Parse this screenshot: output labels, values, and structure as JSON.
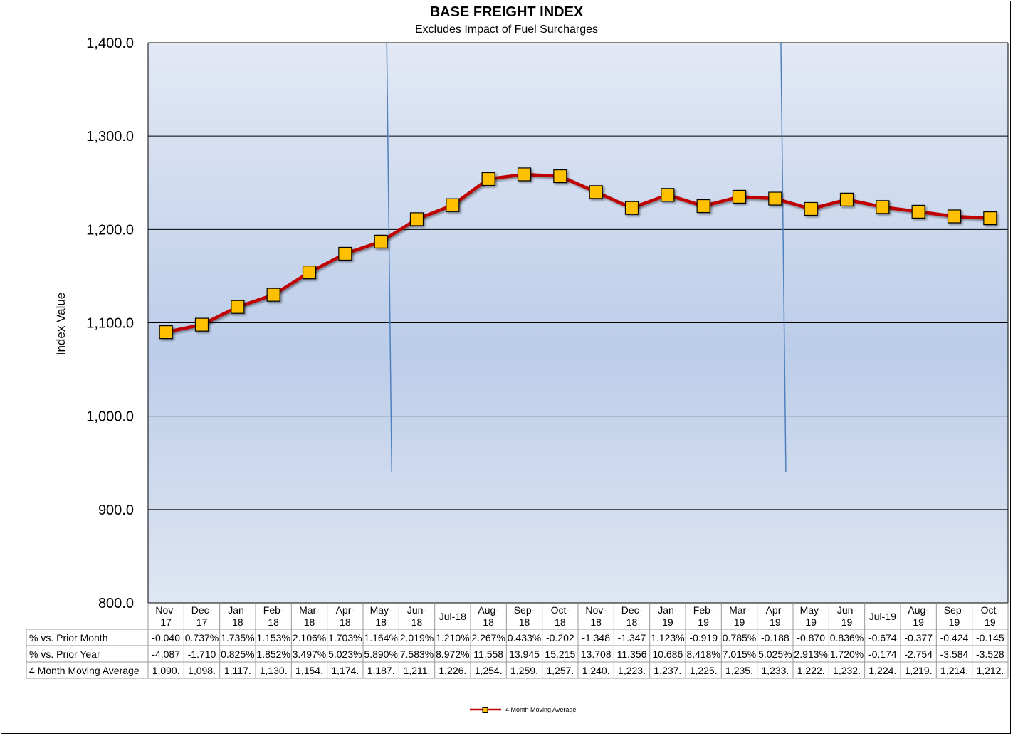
{
  "chart_data": {
    "type": "line",
    "title": "BASE FREIGHT INDEX",
    "subtitle": "Excludes Impact of Fuel Surcharges",
    "ylabel": "Index Value",
    "ylim": [
      800,
      1400
    ],
    "yticks": [
      "1,400.0",
      "1,300.0",
      "1,200.0",
      "1,100.0",
      "1,000.0",
      "900.0",
      "800.0"
    ],
    "ytick_values": [
      1400,
      1300,
      1200,
      1100,
      1000,
      900,
      800
    ],
    "grid": true,
    "legend_position": "bottom-center",
    "categories": [
      "Nov-\n17",
      "Dec-\n17",
      "Jan-\n18",
      "Feb-\n18",
      "Mar-\n18",
      "Apr-\n18",
      "May-\n18",
      "Jun-\n18",
      "Jul-18",
      "Aug-\n18",
      "Sep-\n18",
      "Oct-\n18",
      "Nov-\n18",
      "Dec-\n18",
      "Jan-\n19",
      "Feb-\n19",
      "Mar-\n19",
      "Apr-\n19",
      "May-\n19",
      "Jun-\n19",
      "Jul-19",
      "Aug-\n19",
      "Sep-\n19",
      "Oct-\n19"
    ],
    "series": [
      {
        "name": "4 Month Moving Average",
        "values": [
          1090,
          1098,
          1117,
          1130,
          1154,
          1174,
          1187,
          1211,
          1226,
          1254,
          1259,
          1257,
          1240,
          1223,
          1237,
          1225,
          1235,
          1233,
          1222,
          1232,
          1224,
          1219,
          1214,
          1212
        ],
        "line_color": "#c00000",
        "marker_color": "#ffc000"
      }
    ],
    "vertical_lines_after_index": [
      6,
      17
    ],
    "table": {
      "rows": [
        {
          "label": "% vs. Prior Month",
          "cells": [
            "-0.040",
            "0.737%",
            "1.735%",
            "1.153%",
            "2.106%",
            "1.703%",
            "1.164%",
            "2.019%",
            "1.210%",
            "2.267%",
            "0.433%",
            "-0.202",
            "-1.348",
            "-1.347",
            "1.123%",
            "-0.919",
            "0.785%",
            "-0.188",
            "-0.870",
            "0.836%",
            "-0.674",
            "-0.377",
            "-0.424",
            "-0.145"
          ]
        },
        {
          "label": "% vs. Prior Year",
          "cells": [
            "-4.087",
            "-1.710",
            "0.825%",
            "1.852%",
            "3.497%",
            "5.023%",
            "5.890%",
            "7.583%",
            "8.972%",
            "11.558",
            "13.945",
            "15.215",
            "13.708",
            "11.356",
            "10.686",
            "8.418%",
            "7.015%",
            "5.025%",
            "2.913%",
            "1.720%",
            "-0.174",
            "-2.754",
            "-3.584",
            "-3.528"
          ]
        },
        {
          "label": "4 Month Moving Average",
          "cells": [
            "1,090.",
            "1,098.",
            "1,117.",
            "1,130.",
            "1,154.",
            "1,174.",
            "1,187.",
            "1,211.",
            "1,226.",
            "1,254.",
            "1,259.",
            "1,257.",
            "1,240.",
            "1,223.",
            "1,237.",
            "1,225.",
            "1,235.",
            "1,233.",
            "1,222.",
            "1,232.",
            "1,224.",
            "1,219.",
            "1,214.",
            "1,212."
          ]
        }
      ]
    }
  },
  "colors": {
    "plot_top": "#e3e9f5",
    "plot_mid": "#bccde9",
    "grid": "#000000",
    "vline": "#4f81bd"
  }
}
